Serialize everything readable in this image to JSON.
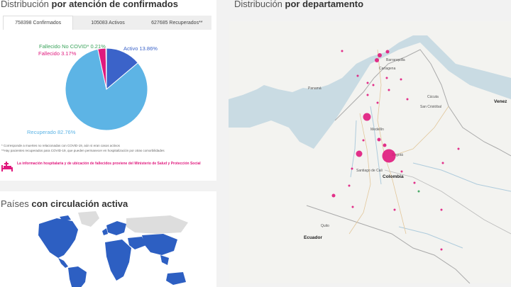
{
  "confirmados": {
    "title_light": "Distribución",
    "title_bold": "por atención de confirmados",
    "tabs": [
      {
        "label": "758398 Confirmados",
        "active": true
      },
      {
        "label": "105083 Activos",
        "active": false
      },
      {
        "label": "627685 Recuperados**",
        "active": false
      }
    ],
    "labels": {
      "fallecido_no_covid": "Fallecido No COVID* 0.21%",
      "fallecido": "Fallecido 3.17%",
      "activo": "Activo 13.86%",
      "recuperado": "Recuperado 82.76%"
    },
    "footnote_1": "* Corresponde a muertes no relacionadas con COVID-19, aún si eran casos activos",
    "footnote_2": "**Hay pacientes recuperados para COVID-19, que pueden permanecer en hospitalización por otras comorbilidades",
    "hosp_note": "La información hospitalaria y de ubicación de fallecidos proviene del Ministerio de Salud y Protección Social"
  },
  "chart_data": {
    "type": "pie",
    "categories": [
      "Activo",
      "Recuperado",
      "Fallecido",
      "Fallecido No COVID*"
    ],
    "values": [
      13.86,
      82.76,
      3.17,
      0.21
    ],
    "colors": [
      "#3b63c9",
      "#5db4e5",
      "#e0197d",
      "#3aa35b"
    ],
    "title": ""
  },
  "paises": {
    "title_light": "Países",
    "title_bold": "con circulación activa"
  },
  "departamento": {
    "title_light": "Distribución",
    "title_bold": "por departamento"
  },
  "map_labels": {
    "barranquilla": "Barranquilla",
    "cartagena": "Cartagena",
    "panama": "Panamá",
    "medellin": "Medellín",
    "bogota": "Bogotá",
    "santiago_de_cali": "Santiago de Cali",
    "colombia": "Colombia",
    "venezuela": "Venez",
    "ecuador": "Ecuador",
    "quito": "Quito",
    "san_cristobal": "San Cristóbal",
    "cucuta": "Cúcuta"
  },
  "colors": {
    "accent": "#e0197d",
    "activo": "#3b63c9",
    "recuperado": "#5db4e5",
    "map_water": "#c9dbe3",
    "world_highlight": "#2d5fc2"
  }
}
